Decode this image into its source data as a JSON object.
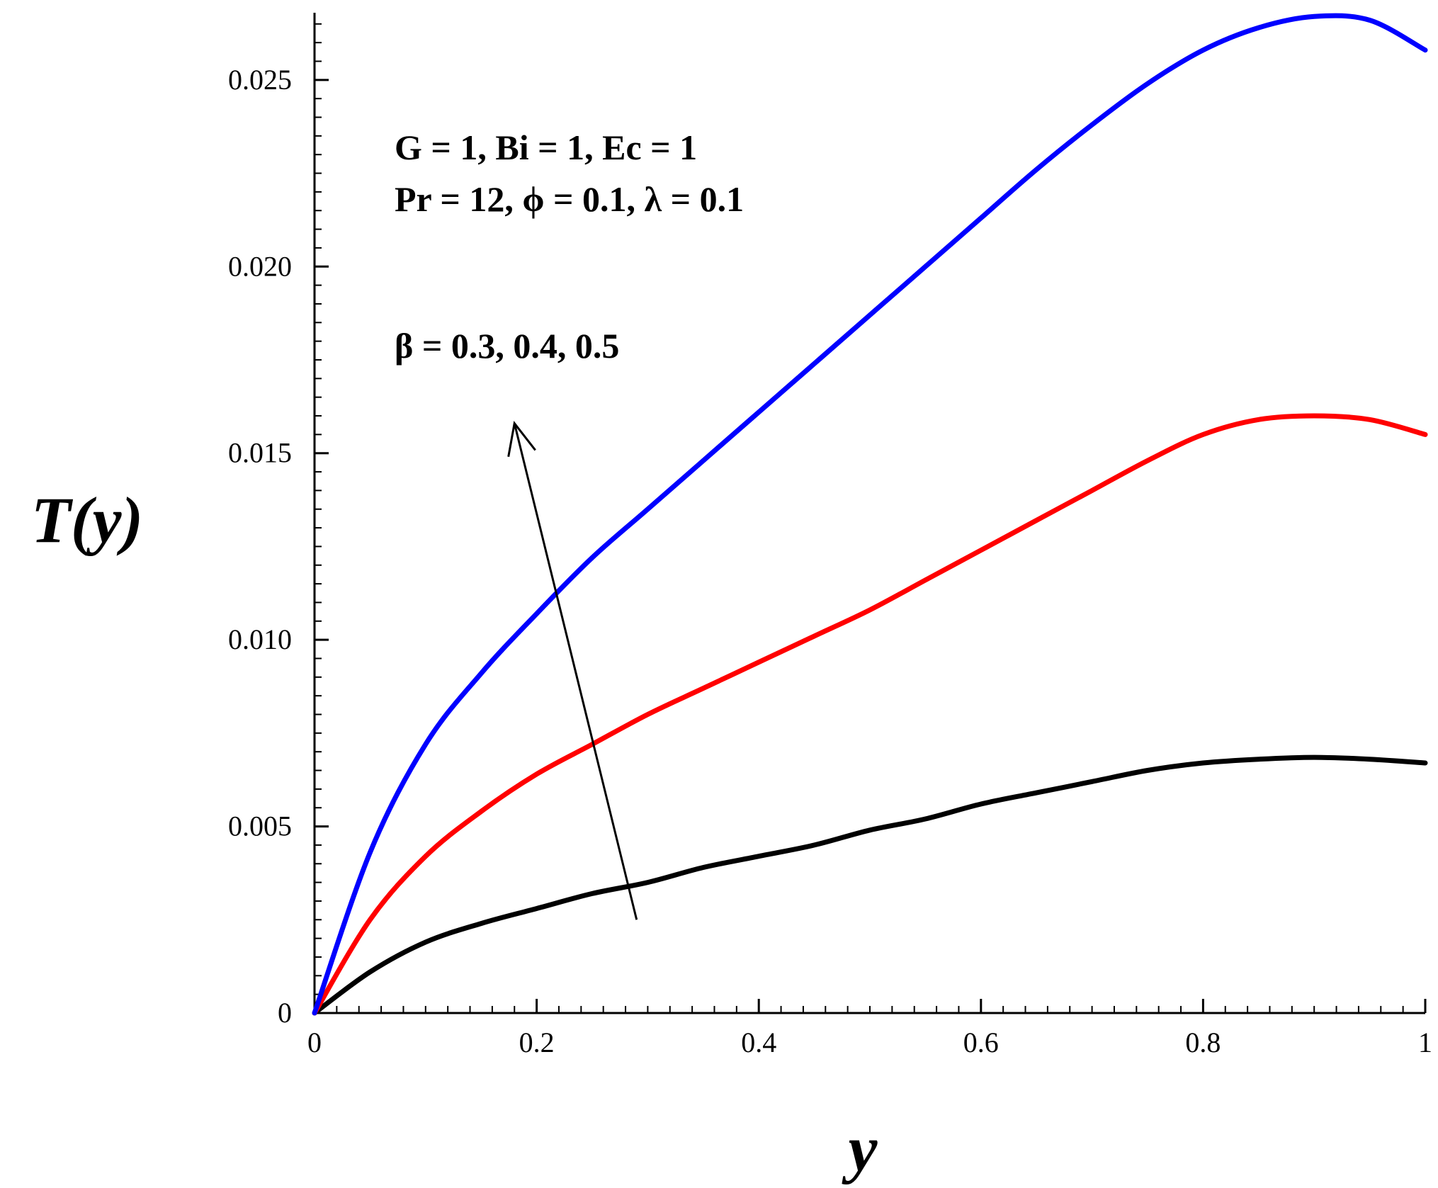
{
  "chart_data": {
    "type": "line",
    "title": "",
    "xlabel": "y",
    "ylabel": "T(y)",
    "xlim": [
      0,
      1
    ],
    "ylim": [
      0,
      0.0268
    ],
    "grid": false,
    "x_ticks": [
      {
        "value": 0,
        "label": "0"
      },
      {
        "value": 0.2,
        "label": "0.2"
      },
      {
        "value": 0.4,
        "label": "0.4"
      },
      {
        "value": 0.6,
        "label": "0.6"
      },
      {
        "value": 0.8,
        "label": "0.8"
      },
      {
        "value": 1,
        "label": "1"
      }
    ],
    "y_ticks": [
      {
        "value": 0,
        "label": "0"
      },
      {
        "value": 0.005,
        "label": "0.005"
      },
      {
        "value": 0.01,
        "label": "0.010"
      },
      {
        "value": 0.015,
        "label": "0.015"
      },
      {
        "value": 0.02,
        "label": "0.020"
      },
      {
        "value": 0.025,
        "label": "0.025"
      }
    ],
    "x": [
      0,
      0.05,
      0.1,
      0.15,
      0.2,
      0.25,
      0.3,
      0.35,
      0.4,
      0.45,
      0.5,
      0.55,
      0.6,
      0.65,
      0.7,
      0.75,
      0.8,
      0.85,
      0.9,
      0.95,
      1.0
    ],
    "series": [
      {
        "color": "#000000",
        "values": [
          0.0,
          0.0011,
          0.0019,
          0.0024,
          0.0028,
          0.0032,
          0.0035,
          0.0039,
          0.0042,
          0.0045,
          0.0049,
          0.0052,
          0.0056,
          0.0059,
          0.0062,
          0.0065,
          0.0067,
          0.0068,
          0.00685,
          0.0068,
          0.0067
        ]
      },
      {
        "color": "#ff0000",
        "values": [
          0.0,
          0.0025,
          0.0042,
          0.0054,
          0.0064,
          0.0072,
          0.008,
          0.0087,
          0.0094,
          0.0101,
          0.0108,
          0.0116,
          0.0124,
          0.0132,
          0.014,
          0.0148,
          0.0155,
          0.0159,
          0.016,
          0.0159,
          0.0155
        ]
      },
      {
        "color": "#0000ff",
        "values": [
          0.0,
          0.0043,
          0.0072,
          0.0091,
          0.0107,
          0.0122,
          0.0135,
          0.0148,
          0.0161,
          0.0174,
          0.0187,
          0.02,
          0.0213,
          0.0226,
          0.0238,
          0.0249,
          0.0258,
          0.0264,
          0.0267,
          0.0266,
          0.0258
        ]
      }
    ],
    "annotations": {
      "params_line1": "G = 1, Bi = 1, Ec = 1",
      "params_line2": "Pr = 12, ϕ = 0.1, λ = 0.1",
      "beta_label": "β = 0.3, 0.4, 0.5"
    },
    "arrow": {
      "from": {
        "x": 0.29,
        "y": 0.0025
      },
      "to": {
        "x": 0.18,
        "y": 0.0158
      }
    }
  }
}
